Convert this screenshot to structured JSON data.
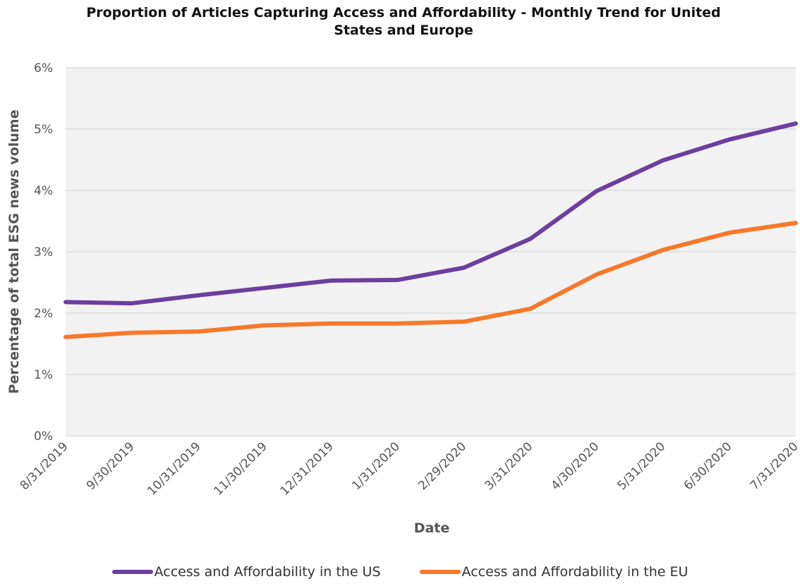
{
  "chart_data": {
    "type": "line",
    "title": "Proportion of Articles Capturing Access and Affordability - Monthly Trend for United States and Europe",
    "xlabel": "Date",
    "ylabel": "Percentage of total ESG news volume",
    "categories": [
      "8/31/2019",
      "9/30/2019",
      "10/31/2019",
      "11/30/2019",
      "12/31/2019",
      "1/31/2020",
      "2/29/2020",
      "3/31/2020",
      "4/30/2020",
      "5/31/2020",
      "6/30/2020",
      "7/31/2020"
    ],
    "series": [
      {
        "name": "Access and Affordability in the US",
        "color": "#6b3fa0",
        "values": [
          2.18,
          2.16,
          2.29,
          2.41,
          2.53,
          2.54,
          2.74,
          3.21,
          3.99,
          4.49,
          4.83,
          5.09
        ]
      },
      {
        "name": "Access and Affordability in the EU",
        "color": "#f7782a",
        "values": [
          1.61,
          1.68,
          1.7,
          1.8,
          1.83,
          1.83,
          1.86,
          2.07,
          2.63,
          3.03,
          3.31,
          3.47
        ]
      }
    ],
    "ylim": [
      0,
      6
    ],
    "yticks": [
      {
        "value": 0,
        "label": "0%"
      },
      {
        "value": 1,
        "label": "1%"
      },
      {
        "value": 2,
        "label": "2%"
      },
      {
        "value": 3,
        "label": "3%"
      },
      {
        "value": 4,
        "label": "4%"
      },
      {
        "value": 5,
        "label": "5%"
      },
      {
        "value": 6,
        "label": "6%"
      }
    ],
    "grid": true
  }
}
